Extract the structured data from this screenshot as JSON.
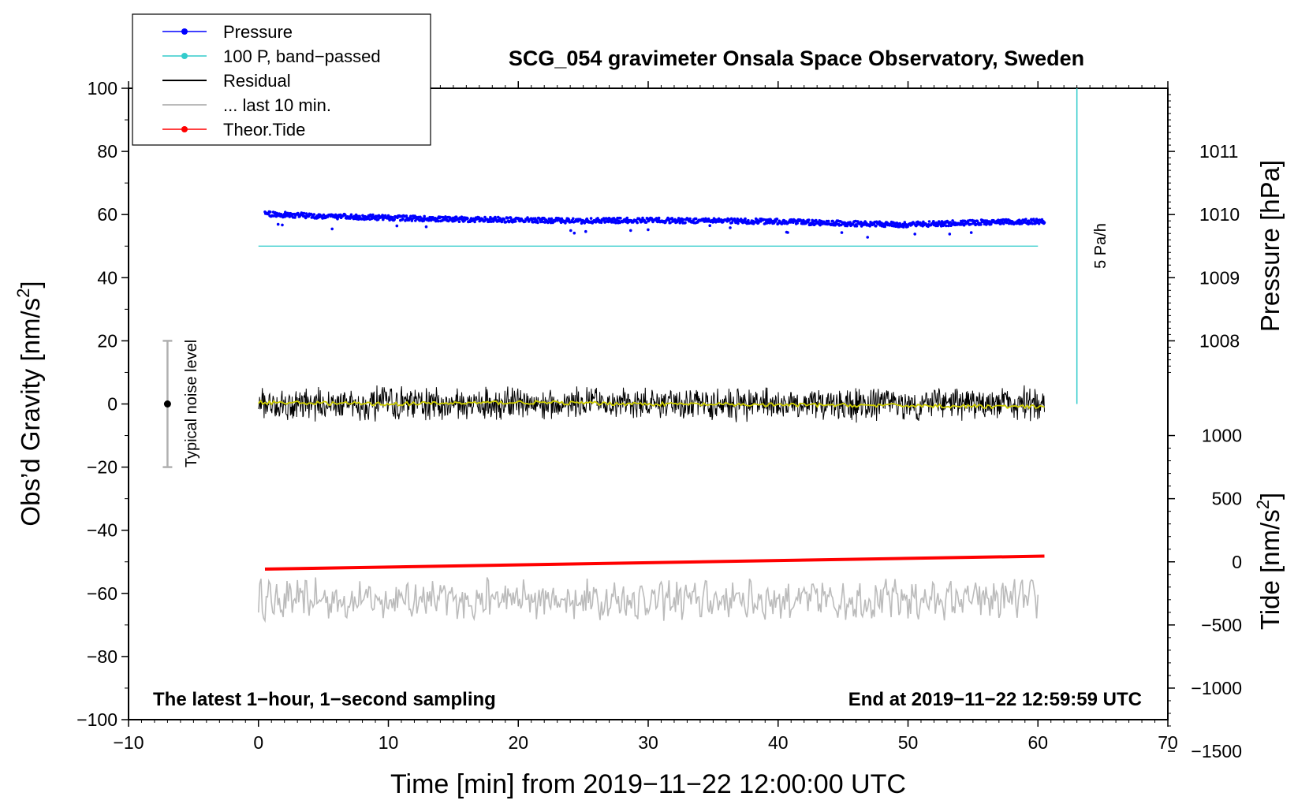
{
  "chart_data": {
    "type": "line",
    "title": "SCG_054 gravimeter Onsala Space Observatory, Sweden",
    "xlabel": "Time [min] from 2019−11−22 12:00:00 UTC",
    "ylabel_left": "Obs’d Gravity [nm/s",
    "ylabel_left_sup": "2",
    "ylabel_left_end": "]",
    "ylabel_right_pressure": "Pressure [hPa]",
    "ylabel_right_tide": "Tide [nm/s",
    "ylabel_right_tide_sup": "2",
    "ylabel_right_tide_end": "]",
    "xlim": [
      -10,
      70
    ],
    "ylim": [
      -100,
      100
    ],
    "x_ticks": [
      "−10",
      "0",
      "10",
      "20",
      "30",
      "40",
      "50",
      "60",
      "70"
    ],
    "x_tick_values": [
      -10,
      0,
      10,
      20,
      30,
      40,
      50,
      60,
      70
    ],
    "y_ticks": [
      "100",
      "80",
      "60",
      "40",
      "20",
      "0",
      "−20",
      "−40",
      "−60",
      "−80",
      "−100"
    ],
    "y_tick_values": [
      100,
      80,
      60,
      40,
      20,
      0,
      -20,
      -40,
      -60,
      -80,
      -100
    ],
    "pressure_axis": {
      "ticks": [
        "1011",
        "1010",
        "1009",
        "1008"
      ],
      "tick_values": [
        1011,
        1010,
        1009,
        1008
      ],
      "gravity_at_1010": 60,
      "nm_per_hPa": 20
    },
    "tide_axis": {
      "ticks": [
        "1000",
        "500",
        "0",
        "−500",
        "−1000",
        "−1500"
      ],
      "tick_values": [
        1000,
        500,
        0,
        -500,
        -1000,
        -1500
      ],
      "gravity_at_0": -50,
      "nm_per_unit": 0.04
    },
    "legend": {
      "placement": "top-left",
      "entries": [
        {
          "label": "Pressure",
          "color": "#0000ff",
          "marker": true
        },
        {
          "label": "100 P, band−passed",
          "color": "#33cccc",
          "marker": true
        },
        {
          "label": "Residual",
          "color": "#000000",
          "marker": false
        },
        {
          "label": "... last 10 min.",
          "color": "#bbbbbb",
          "marker": false
        },
        {
          "label": "Theor.Tide",
          "color": "#ff0000",
          "marker": true
        }
      ]
    },
    "series": [
      {
        "name": "Pressure",
        "color": "#0000ff",
        "x": [
          0.5,
          5,
          10,
          15,
          20,
          25,
          30,
          35,
          40,
          45,
          50,
          55,
          60.5
        ],
        "values": [
          60.2,
          59.5,
          59.0,
          58.5,
          58.3,
          58.0,
          58.2,
          58.0,
          57.8,
          57.2,
          56.8,
          57.5,
          57.8
        ]
      },
      {
        "name": "100 P, band−passed",
        "color": "#33cccc",
        "x": [
          0,
          60
        ],
        "values": [
          50,
          50
        ]
      },
      {
        "name": "Residual",
        "color": "#000000",
        "x": [
          0,
          60.5
        ],
        "values": [
          0,
          0
        ],
        "amplitude": 5
      },
      {
        "name": "Residual smoothed",
        "color": "#cccc00",
        "x": [
          0,
          10,
          20,
          30,
          40,
          50,
          60.5
        ],
        "values": [
          0.5,
          0,
          0.5,
          0,
          -0.3,
          -0.5,
          -1
        ]
      },
      {
        "name": "... last 10 min.",
        "color": "#bbbbbb",
        "x": [
          0,
          60
        ],
        "values": [
          -62,
          -62
        ],
        "amplitude": 5
      },
      {
        "name": "Theor.Tide",
        "color": "#ff0000",
        "x": [
          0.5,
          60.5
        ],
        "values": [
          -52.3,
          -48.2
        ]
      }
    ],
    "scale_bar": {
      "label": "5 Pa/h",
      "x": 63,
      "y_from": 0,
      "y_to": 100
    },
    "noise_bar": {
      "label": "Typical noise level",
      "x": -7,
      "center": 0,
      "low": -20,
      "high": 20
    },
    "annotations": {
      "left": "The latest 1−hour, 1−second sampling",
      "right": "End at 2019−11−22 12:59:59 UTC"
    }
  }
}
